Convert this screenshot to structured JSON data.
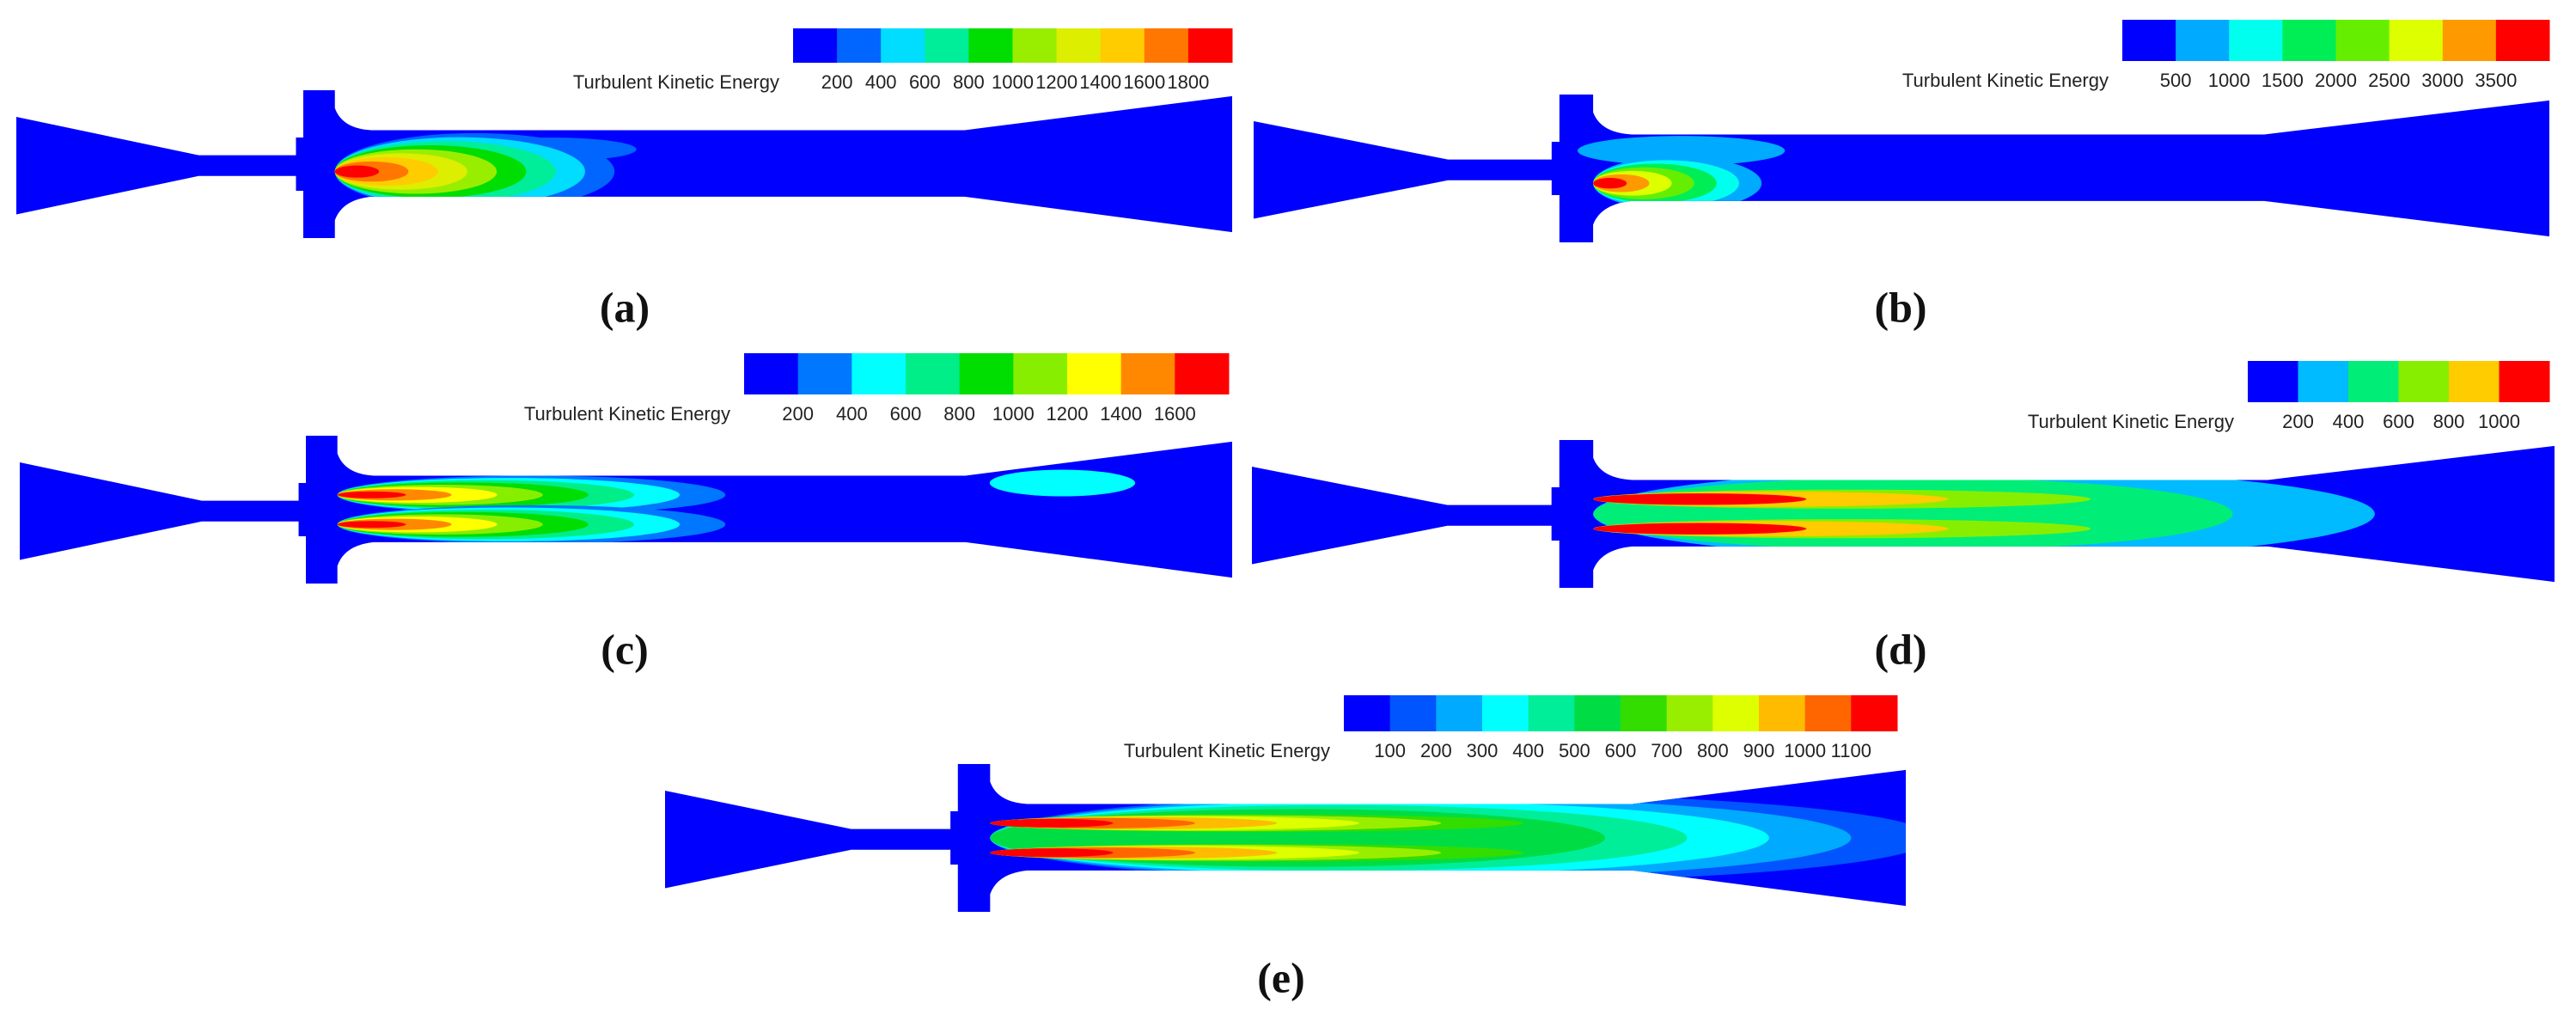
{
  "panels": [
    {
      "label": "(a)",
      "colorbar": {
        "title": "Turbulent Kinetic Energy",
        "ticks": [
          200,
          400,
          600,
          800,
          1000,
          1200,
          1400,
          1600,
          1800
        ],
        "colors": [
          "#0000ff",
          "#0066ff",
          "#00ddff",
          "#00ee99",
          "#00dd00",
          "#99ee00",
          "#ddee00",
          "#ffcc00",
          "#ff7700",
          "#ff0000"
        ]
      }
    },
    {
      "label": "(b)",
      "colorbar": {
        "title": "Turbulent Kinetic Energy",
        "ticks": [
          500,
          1000,
          1500,
          2000,
          2500,
          3000,
          3500
        ],
        "colors": [
          "#0000ff",
          "#00aaff",
          "#00ffee",
          "#00ee55",
          "#66ee00",
          "#ddff00",
          "#ff9900",
          "#ff0000"
        ]
      }
    },
    {
      "label": "(c)",
      "colorbar": {
        "title": "Turbulent Kinetic Energy",
        "ticks": [
          200,
          400,
          600,
          800,
          1000,
          1200,
          1400,
          1600
        ],
        "colors": [
          "#0000ff",
          "#0077ff",
          "#00ffff",
          "#00ee88",
          "#00dd00",
          "#88ee00",
          "#ffff00",
          "#ff8800",
          "#ff0000"
        ]
      }
    },
    {
      "label": "(d)",
      "colorbar": {
        "title": "Turbulent Kinetic Energy",
        "ticks": [
          200,
          400,
          600,
          800,
          1000
        ],
        "colors": [
          "#0000ff",
          "#00bbff",
          "#00ee77",
          "#88ee00",
          "#ffcc00",
          "#ff0000"
        ]
      }
    },
    {
      "label": "(e)",
      "colorbar": {
        "title": "Turbulent Kinetic Energy",
        "ticks": [
          100,
          200,
          300,
          400,
          500,
          600,
          700,
          800,
          900,
          1000,
          1100
        ],
        "colors": [
          "#0000ff",
          "#0055ff",
          "#00aaff",
          "#00ffff",
          "#00ee99",
          "#00dd44",
          "#33dd00",
          "#99ee00",
          "#ddff00",
          "#ffbb00",
          "#ff6600",
          "#ff0000"
        ]
      }
    }
  ]
}
